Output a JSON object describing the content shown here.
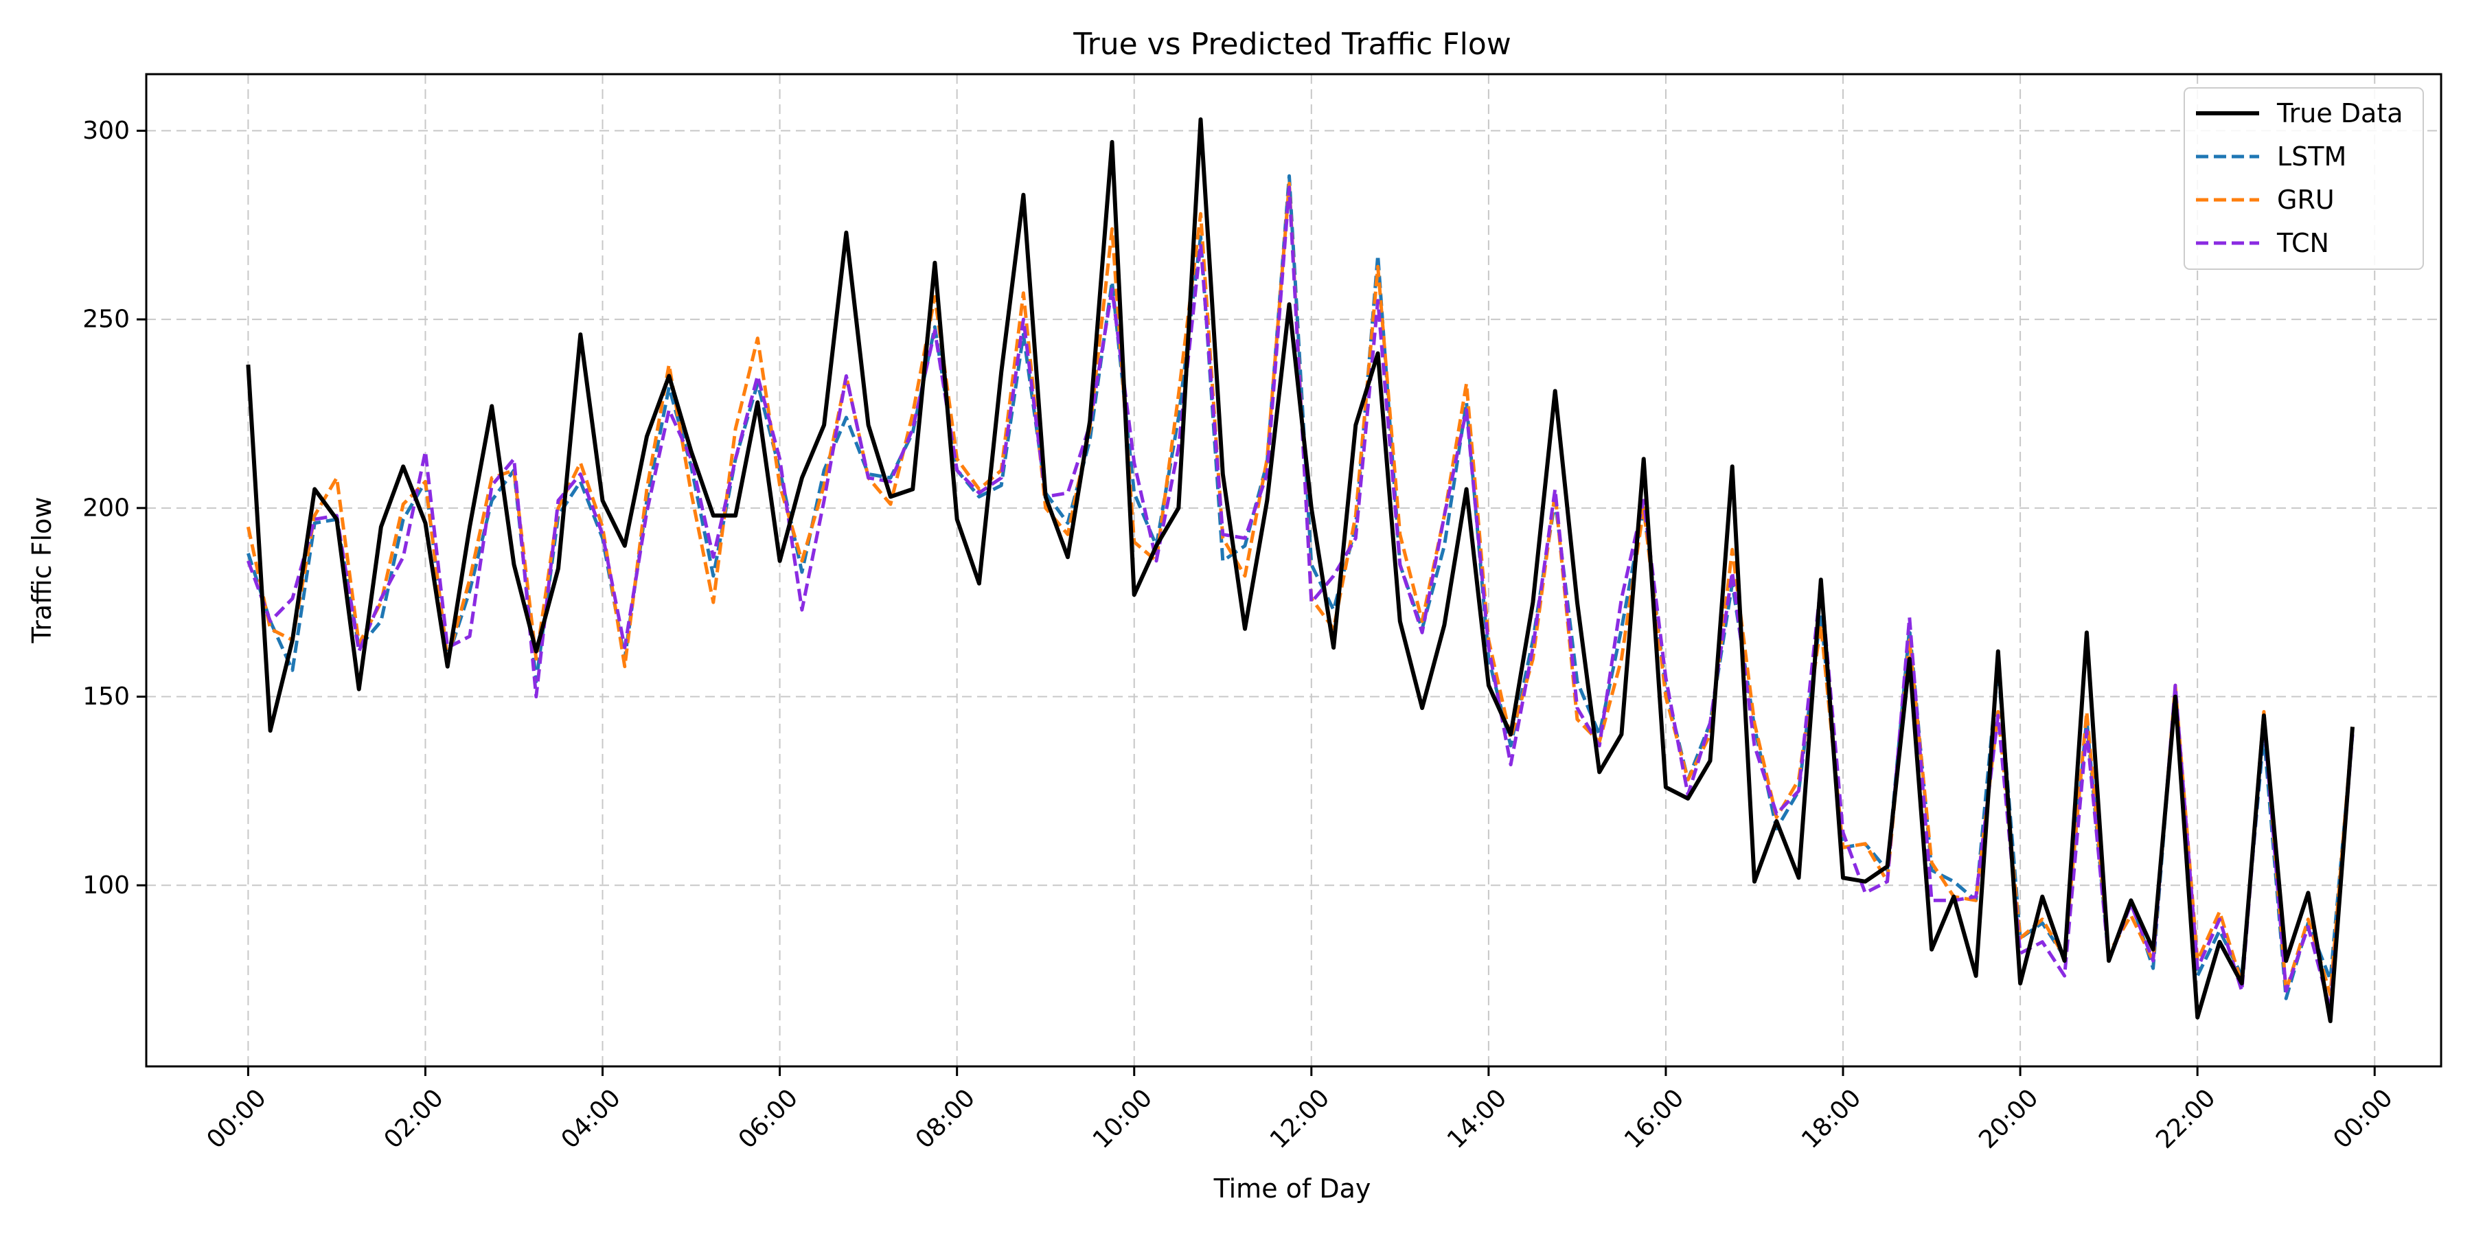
{
  "chart_data": {
    "type": "line",
    "title": "True vs Predicted Traffic Flow",
    "xlabel": "Time of Day",
    "ylabel": "Traffic Flow",
    "x_unit": "hours",
    "xlim": [
      -1.15,
      24.75
    ],
    "ylim": [
      52,
      315
    ],
    "x_ticks": [
      0,
      2,
      4,
      6,
      8,
      10,
      12,
      14,
      16,
      18,
      20,
      22,
      24
    ],
    "x_tick_labels": [
      "00:00",
      "02:00",
      "04:00",
      "06:00",
      "08:00",
      "10:00",
      "12:00",
      "14:00",
      "16:00",
      "18:00",
      "20:00",
      "22:00",
      "00:00"
    ],
    "y_ticks": [
      100,
      150,
      200,
      250,
      300
    ],
    "y_tick_labels": [
      "100",
      "150",
      "200",
      "250",
      "300"
    ],
    "grid": true,
    "legend_position": "top-right",
    "x": [
      0,
      0.25,
      0.5,
      0.75,
      1,
      1.25,
      1.5,
      1.75,
      2,
      2.25,
      2.5,
      2.75,
      3,
      3.25,
      3.5,
      3.75,
      4,
      4.25,
      4.5,
      4.75,
      5,
      5.25,
      5.5,
      5.75,
      6,
      6.25,
      6.5,
      6.75,
      7,
      7.25,
      7.5,
      7.75,
      8,
      8.25,
      8.5,
      8.75,
      9,
      9.25,
      9.5,
      9.75,
      10,
      10.25,
      10.5,
      10.75,
      11,
      11.25,
      11.5,
      11.75,
      12,
      12.25,
      12.5,
      12.75,
      13,
      13.25,
      13.5,
      13.75,
      14,
      14.25,
      14.5,
      14.75,
      15,
      15.25,
      15.5,
      15.75,
      16,
      16.25,
      16.5,
      16.75,
      17,
      17.25,
      17.5,
      17.75,
      18,
      18.25,
      18.5,
      18.75,
      19,
      19.25,
      19.5,
      19.75,
      20,
      20.25,
      20.5,
      20.75,
      21,
      21.25,
      21.5,
      21.75,
      22,
      22.25,
      22.5,
      22.75,
      23,
      23.25,
      23.5,
      23.75
    ],
    "series": [
      {
        "name": "True Data",
        "color": "#000000",
        "dashed": false,
        "values": [
          238,
          141,
          165,
          205,
          197,
          152,
          195,
          211,
          196,
          158,
          195,
          227,
          185,
          162,
          184,
          246,
          202,
          190,
          219,
          235,
          215,
          198,
          198,
          228,
          186,
          208,
          222,
          273,
          222,
          203,
          205,
          265,
          197,
          180,
          236,
          283,
          203,
          187,
          223,
          297,
          177,
          190,
          200,
          303,
          209,
          168,
          202,
          254,
          200,
          163,
          222,
          241,
          170,
          147,
          169,
          205,
          153,
          140,
          175,
          231,
          175,
          130,
          140,
          213,
          126,
          123,
          133,
          211,
          101,
          117,
          102,
          181,
          102,
          101,
          105,
          160,
          83,
          97,
          76,
          162,
          74,
          97,
          80,
          167,
          80,
          96,
          83,
          150,
          65,
          85,
          74,
          145,
          80,
          98,
          64,
          142
        ]
      },
      {
        "name": "LSTM",
        "color": "#1f77b4",
        "dashed": true,
        "values": [
          188,
          170,
          157,
          196,
          197,
          163,
          170,
          197,
          207,
          160,
          178,
          202,
          210,
          154,
          198,
          207,
          192,
          160,
          202,
          232,
          211,
          182,
          213,
          233,
          210,
          183,
          210,
          224,
          209,
          208,
          220,
          248,
          210,
          203,
          206,
          246,
          204,
          196,
          218,
          260,
          204,
          190,
          224,
          272,
          186,
          190,
          212,
          288,
          185,
          173,
          195,
          267,
          185,
          168,
          190,
          228,
          160,
          137,
          165,
          202,
          154,
          140,
          168,
          200,
          152,
          128,
          143,
          180,
          142,
          115,
          125,
          172,
          110,
          111,
          104,
          168,
          104,
          101,
          96,
          158,
          86,
          90,
          81,
          144,
          80,
          96,
          78,
          152,
          76,
          88,
          76,
          140,
          70,
          90,
          75,
          140
        ]
      },
      {
        "name": "GRU",
        "color": "#ff7f0e",
        "dashed": true,
        "values": [
          195,
          168,
          165,
          198,
          208,
          164,
          175,
          201,
          207,
          160,
          181,
          208,
          210,
          160,
          200,
          212,
          195,
          158,
          205,
          238,
          204,
          175,
          221,
          245,
          206,
          186,
          206,
          235,
          208,
          201,
          225,
          256,
          213,
          205,
          210,
          257,
          200,
          193,
          221,
          274,
          191,
          186,
          230,
          278,
          192,
          182,
          213,
          286,
          176,
          168,
          198,
          264,
          193,
          170,
          198,
          233,
          165,
          139,
          160,
          204,
          144,
          138,
          160,
          200,
          150,
          128,
          140,
          189,
          143,
          118,
          128,
          169,
          110,
          111,
          101,
          165,
          106,
          97,
          96,
          146,
          86,
          91,
          81,
          146,
          82,
          92,
          80,
          153,
          80,
          93,
          74,
          146,
          72,
          91,
          71,
          142
        ]
      },
      {
        "name": "TCN",
        "color": "#8a2be2",
        "dashed": true,
        "values": [
          186,
          170,
          176,
          197,
          198,
          162,
          176,
          187,
          215,
          163,
          166,
          206,
          213,
          150,
          202,
          209,
          193,
          163,
          199,
          226,
          213,
          187,
          213,
          235,
          213,
          173,
          202,
          235,
          208,
          207,
          221,
          247,
          210,
          204,
          208,
          250,
          203,
          204,
          222,
          258,
          212,
          186,
          216,
          270,
          193,
          192,
          209,
          285,
          175,
          182,
          192,
          255,
          185,
          167,
          198,
          226,
          163,
          132,
          163,
          205,
          147,
          137,
          176,
          202,
          155,
          124,
          143,
          183,
          137,
          119,
          125,
          180,
          114,
          98,
          101,
          171,
          96,
          96,
          97,
          145,
          82,
          85,
          76,
          141,
          80,
          95,
          80,
          153,
          78,
          91,
          72,
          144,
          72,
          89,
          67,
          140
        ]
      }
    ]
  }
}
